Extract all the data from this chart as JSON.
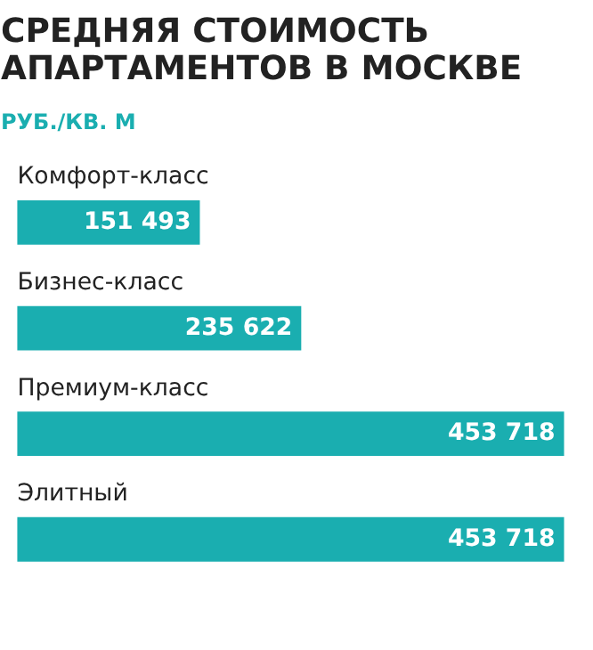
{
  "chart_data": {
    "type": "bar",
    "orientation": "horizontal",
    "title": "СРЕДНЯЯ СТОИМОСТЬ АПАРТАМЕНТОВ В МОСКВЕ",
    "subtitle": "РУБ./КВ. М",
    "categories": [
      "Комфорт-класс",
      "Бизнес-класс",
      "Премиум-класс",
      "Элитный"
    ],
    "values": [
      151493,
      235622,
      453718,
      453718
    ],
    "value_labels": [
      "151 493",
      "235 622",
      "453 718",
      "453 718"
    ],
    "color": "#1aaeb0"
  }
}
